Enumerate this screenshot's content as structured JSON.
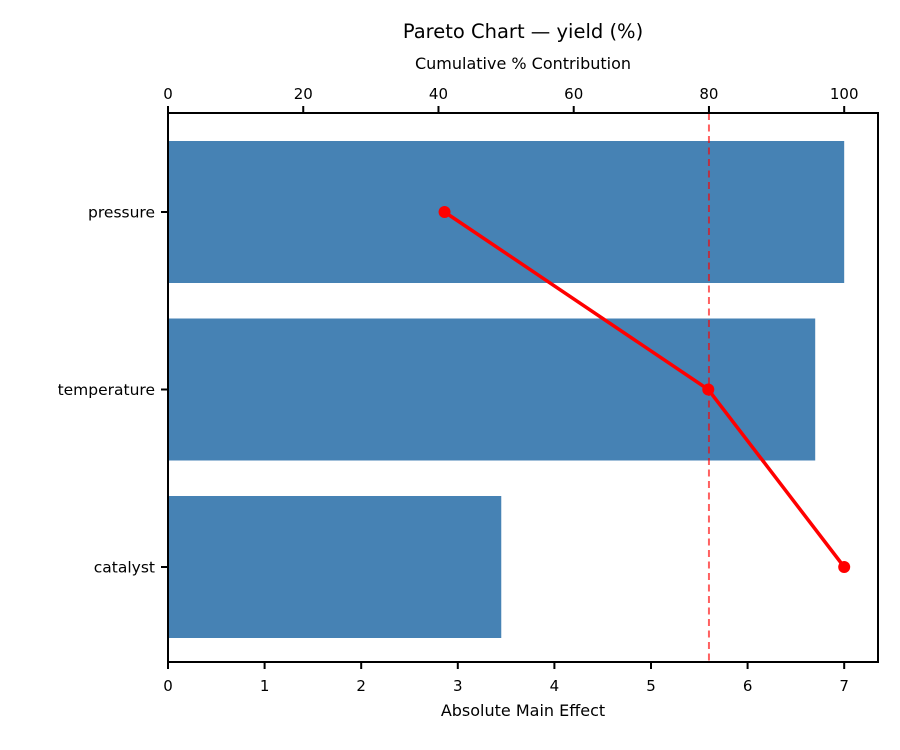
{
  "chart_data": {
    "type": "bar",
    "subtype": "pareto",
    "orientation": "horizontal",
    "title": "Pareto Chart — yield (%)",
    "top_axis_label": "Cumulative % Contribution",
    "bottom_axis_label": "Absolute Main Effect",
    "categories": [
      "pressure",
      "temperature",
      "catalyst"
    ],
    "values": [
      7.0,
      6.7,
      3.45
    ],
    "cumulative_pct": [
      40.9,
      79.9,
      100.0
    ],
    "bottom_ticks": [
      0,
      1,
      2,
      3,
      4,
      5,
      6,
      7
    ],
    "top_ticks": [
      0,
      20,
      40,
      60,
      80,
      100
    ],
    "bottom_xlim": [
      0,
      7.35
    ],
    "top_xlim": [
      0,
      105
    ],
    "reference_line_pct": 80,
    "grid": "off",
    "legend": "none",
    "bar_color": "#4682B4",
    "line_color": "#FF0000",
    "ref_line_color": "rgba(255,0,0,0.62)",
    "text_color": "#000000",
    "spine_color": "#000000"
  }
}
